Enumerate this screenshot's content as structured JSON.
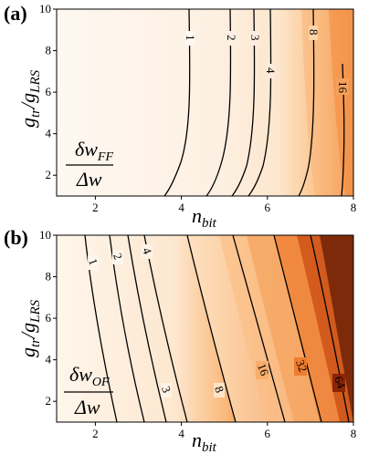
{
  "chart_data": [
    {
      "type": "heatmap",
      "panel_label": "(a)",
      "xlabel": "n_bit",
      "ylabel": "g_tr / g_LRS",
      "xlim": [
        1.1,
        8
      ],
      "ylim": [
        1,
        10
      ],
      "xticks": [
        "2",
        "4",
        "6",
        "8"
      ],
      "yticks": [
        "2",
        "4",
        "6",
        "8",
        "10"
      ],
      "colormap": [
        "#fef8f1",
        "#fdebd6",
        "#fbcf9a",
        "#f58a3a",
        "#e96c20"
      ],
      "inset_text": {
        "numerator": "δw",
        "numerator_sub": "FF",
        "denominator": "Δw"
      },
      "contour_levels": [
        "1",
        "2",
        "3",
        "4",
        "8",
        "16"
      ]
    },
    {
      "type": "heatmap",
      "panel_label": "(b)",
      "xlabel": "n_bit",
      "ylabel": "g_tr / g_LRS",
      "xlim": [
        1.1,
        8
      ],
      "ylim": [
        1,
        10
      ],
      "xticks": [
        "2",
        "4",
        "6",
        "8"
      ],
      "yticks": [
        "2",
        "4",
        "6",
        "8",
        "10"
      ],
      "colormap": [
        "#fef6ec",
        "#fde2c4",
        "#fbb57a",
        "#f38a3c",
        "#e25a10",
        "#a02d05",
        "#3a0d02",
        "#000000"
      ],
      "inset_text": {
        "numerator": "δw",
        "numerator_sub": "OF",
        "denominator": "Δw"
      },
      "contour_levels": [
        "1",
        "2",
        "3",
        "4",
        "8",
        "16",
        "32",
        "64"
      ]
    }
  ]
}
